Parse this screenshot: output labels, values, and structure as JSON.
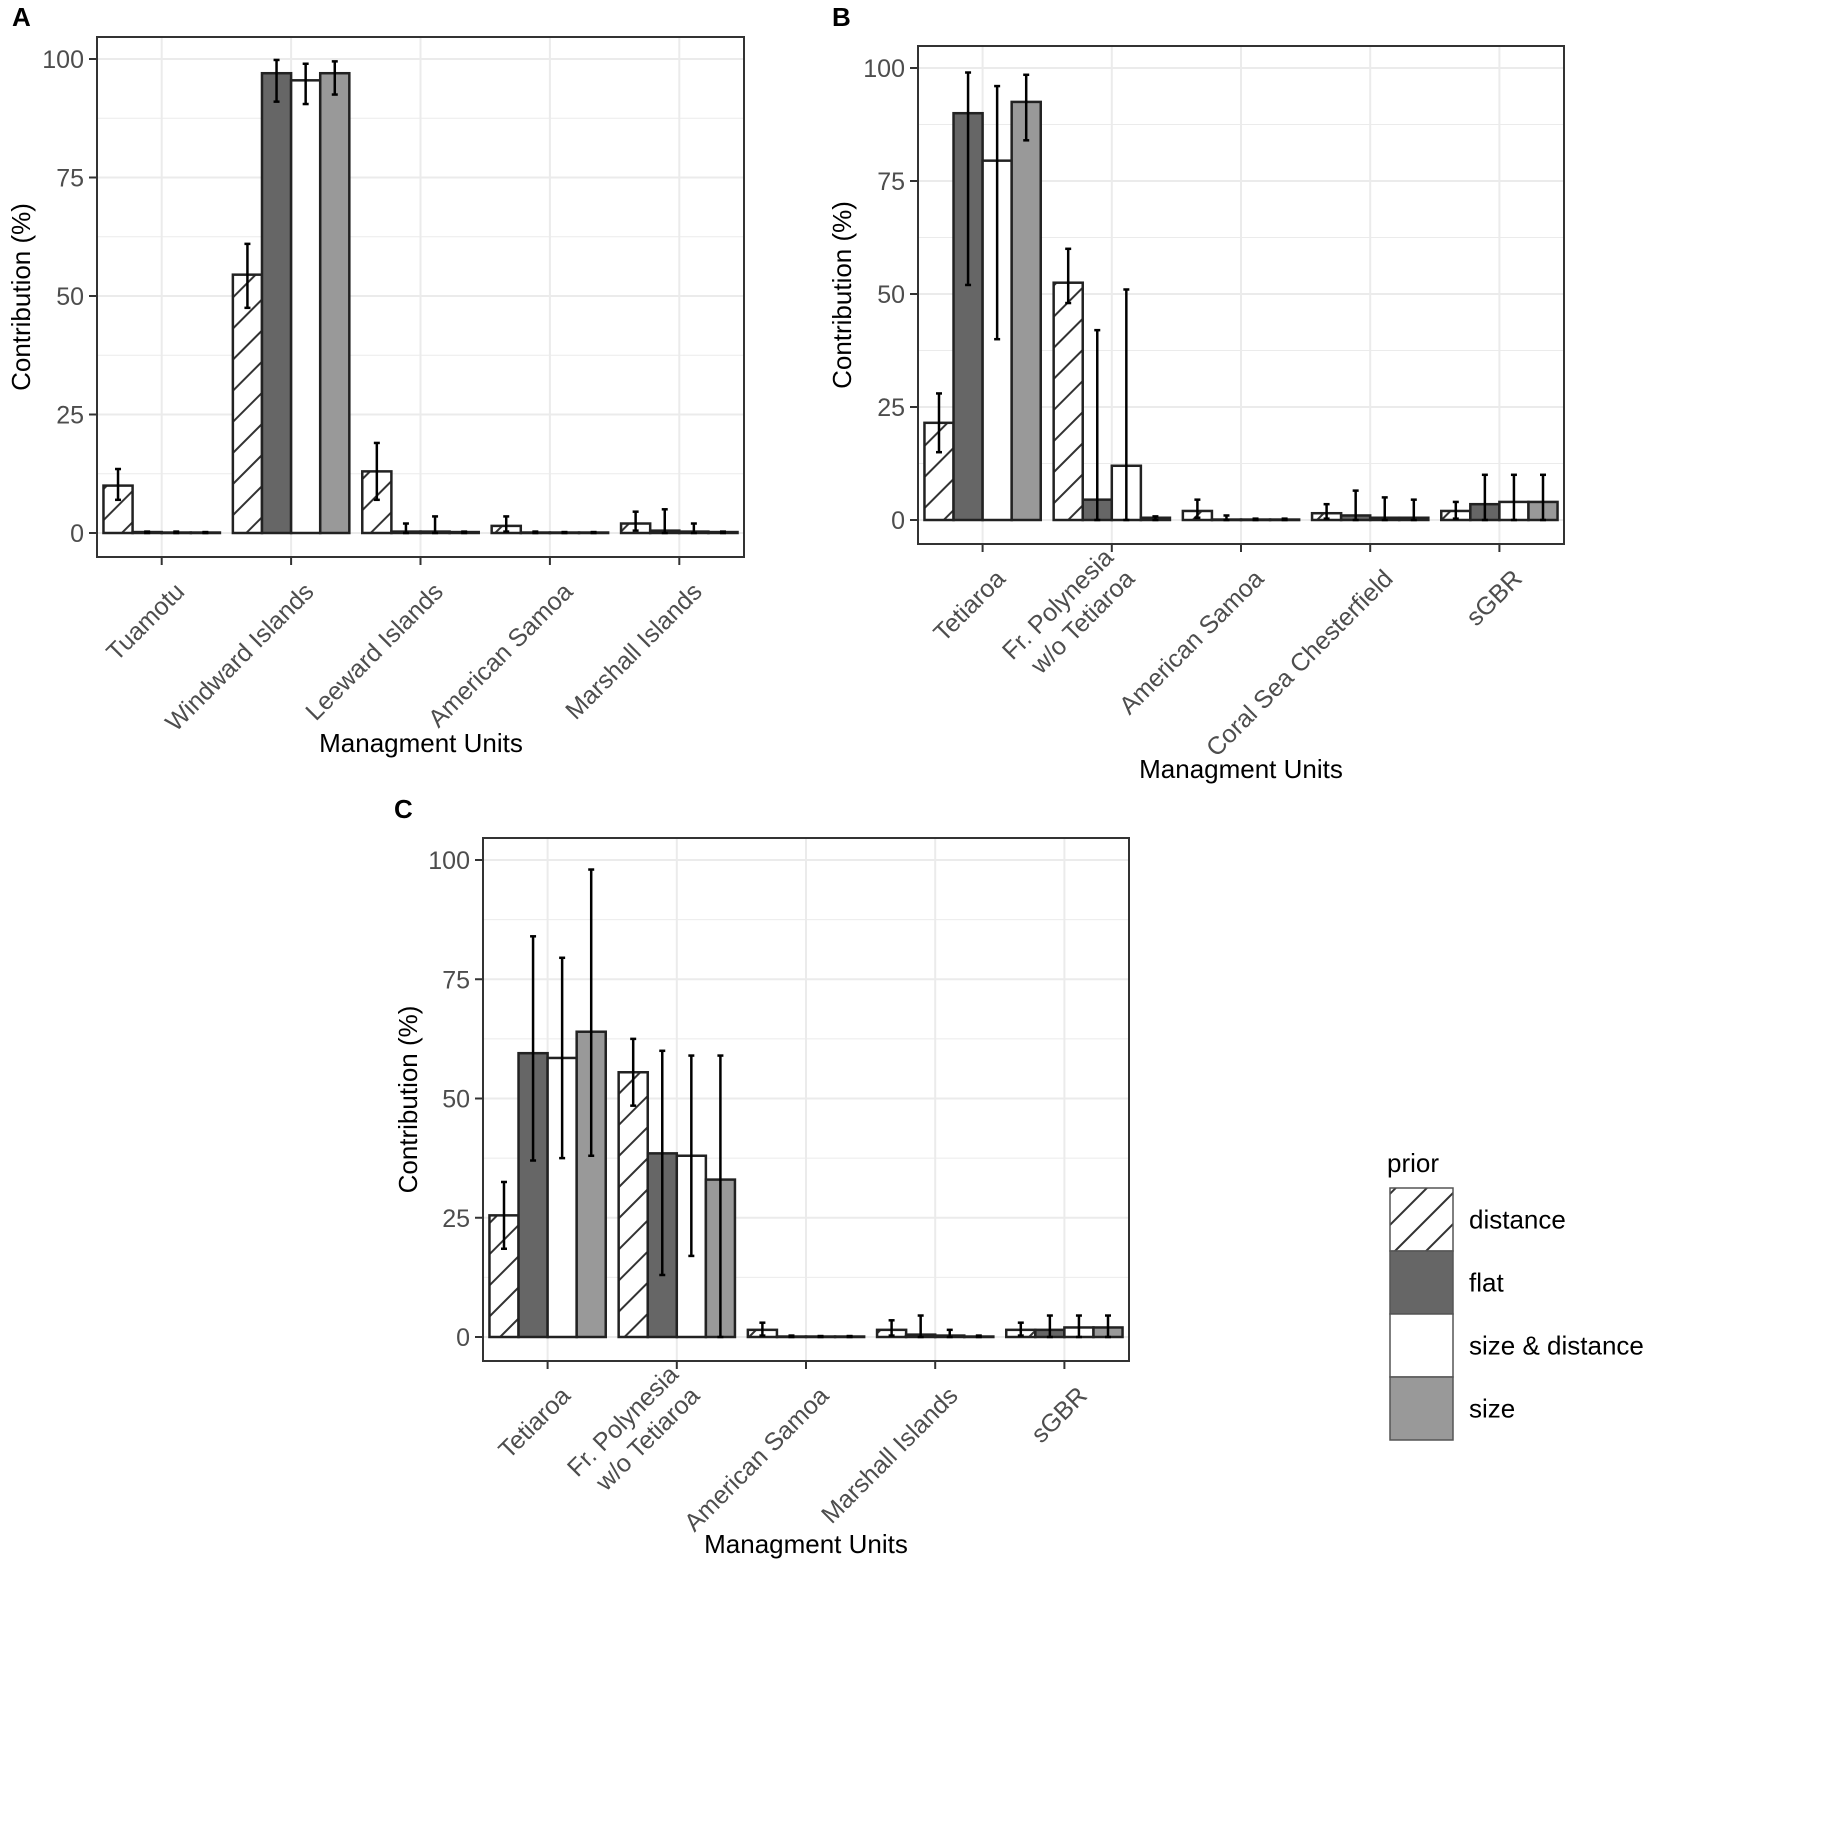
{
  "figure": {
    "colors": {
      "flat": "#666666",
      "size_distance": "#ffffff",
      "size": "#999999",
      "distance_fill": "#ffffff",
      "hatch": "#333333",
      "outline": "#222222",
      "grid": "#ebebeb",
      "panel_border": "#333333"
    }
  },
  "legend": {
    "title": "prior",
    "items": [
      {
        "label": "distance",
        "key": "distance"
      },
      {
        "label": "flat",
        "key": "flat"
      },
      {
        "label": "size & distance",
        "key": "size_distance"
      },
      {
        "label": "size",
        "key": "size"
      }
    ]
  },
  "chart_data": [
    {
      "panel": "A",
      "type": "bar",
      "xlabel": "Managment Units",
      "ylabel": "Contribution (%)",
      "ylim": [
        0,
        100
      ],
      "yticks": [
        0,
        25,
        50,
        75,
        100
      ],
      "grid": true,
      "categories": [
        "Tuamotu",
        "Windward Islands",
        "Leeward Islands",
        "American Samoa",
        "Marshall Islands"
      ],
      "series": [
        {
          "name": "distance",
          "values": [
            10,
            54.5,
            13,
            1.5,
            2
          ],
          "err_low": [
            7,
            47.5,
            7,
            0.3,
            0.5
          ],
          "err_high": [
            13.5,
            61,
            19,
            3.5,
            4.5
          ]
        },
        {
          "name": "flat",
          "values": [
            0.2,
            97,
            0.3,
            0.1,
            0.5
          ],
          "err_low": [
            0,
            91,
            0,
            0,
            0
          ],
          "err_high": [
            0.3,
            99.8,
            2,
            0.3,
            5
          ]
        },
        {
          "name": "size & distance",
          "values": [
            0.1,
            95.5,
            0.3,
            0.1,
            0.3
          ],
          "err_low": [
            0,
            90.5,
            0,
            0,
            0
          ],
          "err_high": [
            0.3,
            99,
            3.5,
            0.2,
            2
          ]
        },
        {
          "name": "size",
          "values": [
            0.1,
            97,
            0.2,
            0.1,
            0.2
          ],
          "err_low": [
            0,
            92.5,
            0,
            0,
            0
          ],
          "err_high": [
            0.2,
            99.5,
            0.3,
            0.2,
            0.3
          ]
        }
      ]
    },
    {
      "panel": "B",
      "type": "bar",
      "xlabel": "Managment Units",
      "ylabel": "Contribution (%)",
      "ylim": [
        0,
        100
      ],
      "yticks": [
        0,
        25,
        50,
        75,
        100
      ],
      "grid": true,
      "categories": [
        "Tetiaroa",
        "Fr. Polynesia\nw/o Tetiaroa",
        "American Samoa",
        "Coral Sea Chesterfield",
        "sGBR"
      ],
      "series": [
        {
          "name": "distance",
          "values": [
            21.5,
            52.5,
            2,
            1.5,
            2
          ],
          "err_low": [
            15,
            48,
            0.5,
            0.3,
            0.3
          ],
          "err_high": [
            28,
            60,
            4.5,
            3.5,
            4
          ]
        },
        {
          "name": "flat",
          "values": [
            90,
            4.5,
            0.1,
            1,
            3.5
          ],
          "err_low": [
            52,
            0,
            0,
            0,
            0
          ],
          "err_high": [
            99,
            42,
            1,
            6.5,
            10
          ]
        },
        {
          "name": "size & distance",
          "values": [
            79.5,
            12,
            0.1,
            0.5,
            4
          ],
          "err_low": [
            40,
            0,
            0,
            0,
            0
          ],
          "err_high": [
            96,
            51,
            0.3,
            5,
            10
          ]
        },
        {
          "name": "size",
          "values": [
            92.5,
            0.5,
            0.1,
            0.5,
            4
          ],
          "err_low": [
            84,
            0,
            0,
            0,
            0
          ],
          "err_high": [
            98.5,
            0.8,
            0.3,
            4.5,
            10
          ]
        }
      ]
    },
    {
      "panel": "C",
      "type": "bar",
      "xlabel": "Managment Units",
      "ylabel": "Contribution (%)",
      "ylim": [
        0,
        100
      ],
      "yticks": [
        0,
        25,
        50,
        75,
        100
      ],
      "grid": true,
      "categories": [
        "Tetiaroa",
        "Fr. Polynesia\nw/o Tetiaroa",
        "American Samoa",
        "Marshall Islands",
        "sGBR"
      ],
      "series": [
        {
          "name": "distance",
          "values": [
            25.5,
            55.5,
            1.5,
            1.5,
            1.5
          ],
          "err_low": [
            18.5,
            48.5,
            0.3,
            0.3,
            0.3
          ],
          "err_high": [
            32.5,
            62.5,
            3,
            3.5,
            3
          ]
        },
        {
          "name": "flat",
          "values": [
            59.5,
            38.5,
            0.1,
            0.5,
            1.5
          ],
          "err_low": [
            37,
            13,
            0,
            0,
            0
          ],
          "err_high": [
            84,
            60,
            0.3,
            4.5,
            4.5
          ]
        },
        {
          "name": "size & distance",
          "values": [
            58.5,
            38,
            0.1,
            0.3,
            2
          ],
          "err_low": [
            37.5,
            17,
            0,
            0,
            0
          ],
          "err_high": [
            79.5,
            59,
            0.2,
            1.5,
            4.5
          ]
        },
        {
          "name": "size",
          "values": [
            64,
            33,
            0.1,
            0.1,
            2
          ],
          "err_low": [
            38,
            0,
            0,
            0,
            0
          ],
          "err_high": [
            98,
            59,
            0.2,
            0.3,
            4.5
          ]
        }
      ]
    }
  ]
}
